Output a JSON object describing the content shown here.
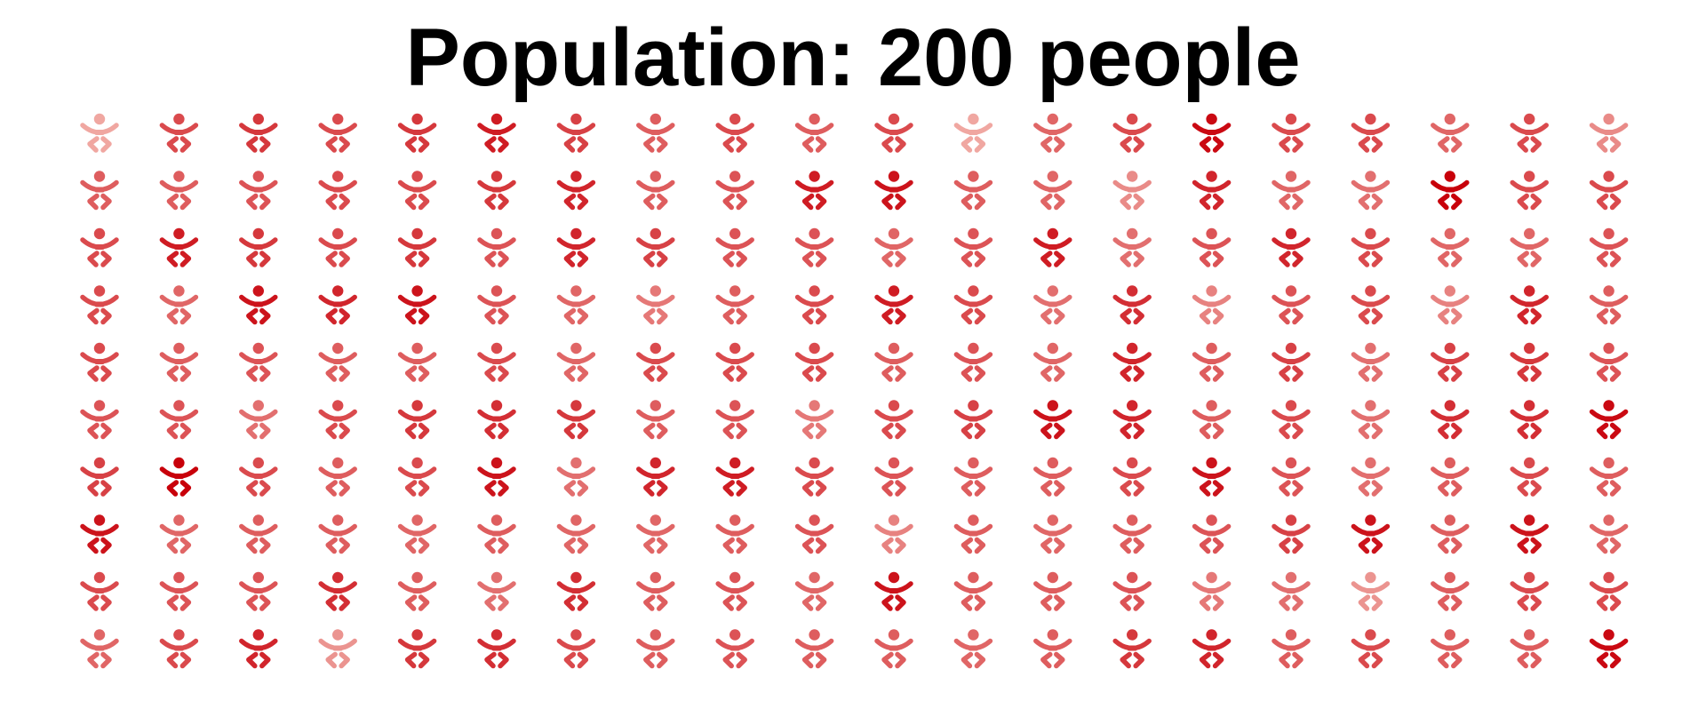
{
  "chart_data": {
    "type": "pictogram",
    "title": "Population: 200 people",
    "rows": 10,
    "columns": 20,
    "icon": "person-icon",
    "base_color": "#e34a33",
    "min_color": "#f4b9b2",
    "max_color": "#c8000a",
    "intensity": [
      [
        0.1,
        0.6,
        0.7,
        0.6,
        0.7,
        0.85,
        0.65,
        0.5,
        0.6,
        0.5,
        0.6,
        0.1,
        0.45,
        0.6,
        0.95,
        0.6,
        0.6,
        0.45,
        0.6,
        0.25
      ],
      [
        0.5,
        0.5,
        0.55,
        0.6,
        0.6,
        0.7,
        0.8,
        0.5,
        0.55,
        0.85,
        0.9,
        0.5,
        0.45,
        0.25,
        0.8,
        0.45,
        0.4,
        1.0,
        0.6,
        0.6
      ],
      [
        0.6,
        0.85,
        0.7,
        0.6,
        0.7,
        0.55,
        0.8,
        0.65,
        0.55,
        0.55,
        0.45,
        0.55,
        0.85,
        0.4,
        0.55,
        0.8,
        0.6,
        0.45,
        0.45,
        0.55
      ],
      [
        0.6,
        0.45,
        0.9,
        0.8,
        0.9,
        0.55,
        0.45,
        0.35,
        0.5,
        0.6,
        0.85,
        0.6,
        0.4,
        0.75,
        0.3,
        0.55,
        0.6,
        0.3,
        0.8,
        0.5
      ],
      [
        0.6,
        0.5,
        0.55,
        0.5,
        0.5,
        0.6,
        0.45,
        0.6,
        0.6,
        0.6,
        0.5,
        0.55,
        0.45,
        0.8,
        0.5,
        0.65,
        0.4,
        0.65,
        0.7,
        0.55
      ],
      [
        0.55,
        0.55,
        0.4,
        0.6,
        0.7,
        0.75,
        0.7,
        0.5,
        0.55,
        0.35,
        0.6,
        0.65,
        0.9,
        0.8,
        0.5,
        0.6,
        0.4,
        0.75,
        0.75,
        0.95
      ],
      [
        0.65,
        1.0,
        0.6,
        0.5,
        0.6,
        0.9,
        0.4,
        0.8,
        0.85,
        0.6,
        0.55,
        0.5,
        0.5,
        0.6,
        0.9,
        0.55,
        0.4,
        0.5,
        0.6,
        0.5
      ],
      [
        0.9,
        0.45,
        0.5,
        0.5,
        0.45,
        0.5,
        0.45,
        0.45,
        0.5,
        0.55,
        0.3,
        0.5,
        0.45,
        0.5,
        0.55,
        0.65,
        0.9,
        0.5,
        0.9,
        0.45
      ],
      [
        0.6,
        0.55,
        0.55,
        0.75,
        0.5,
        0.4,
        0.75,
        0.5,
        0.55,
        0.45,
        0.9,
        0.5,
        0.5,
        0.55,
        0.35,
        0.4,
        0.2,
        0.5,
        0.6,
        0.6
      ],
      [
        0.45,
        0.6,
        0.8,
        0.2,
        0.7,
        0.75,
        0.6,
        0.5,
        0.55,
        0.5,
        0.5,
        0.45,
        0.5,
        0.7,
        0.8,
        0.5,
        0.6,
        0.5,
        0.5,
        0.95
      ]
    ]
  }
}
